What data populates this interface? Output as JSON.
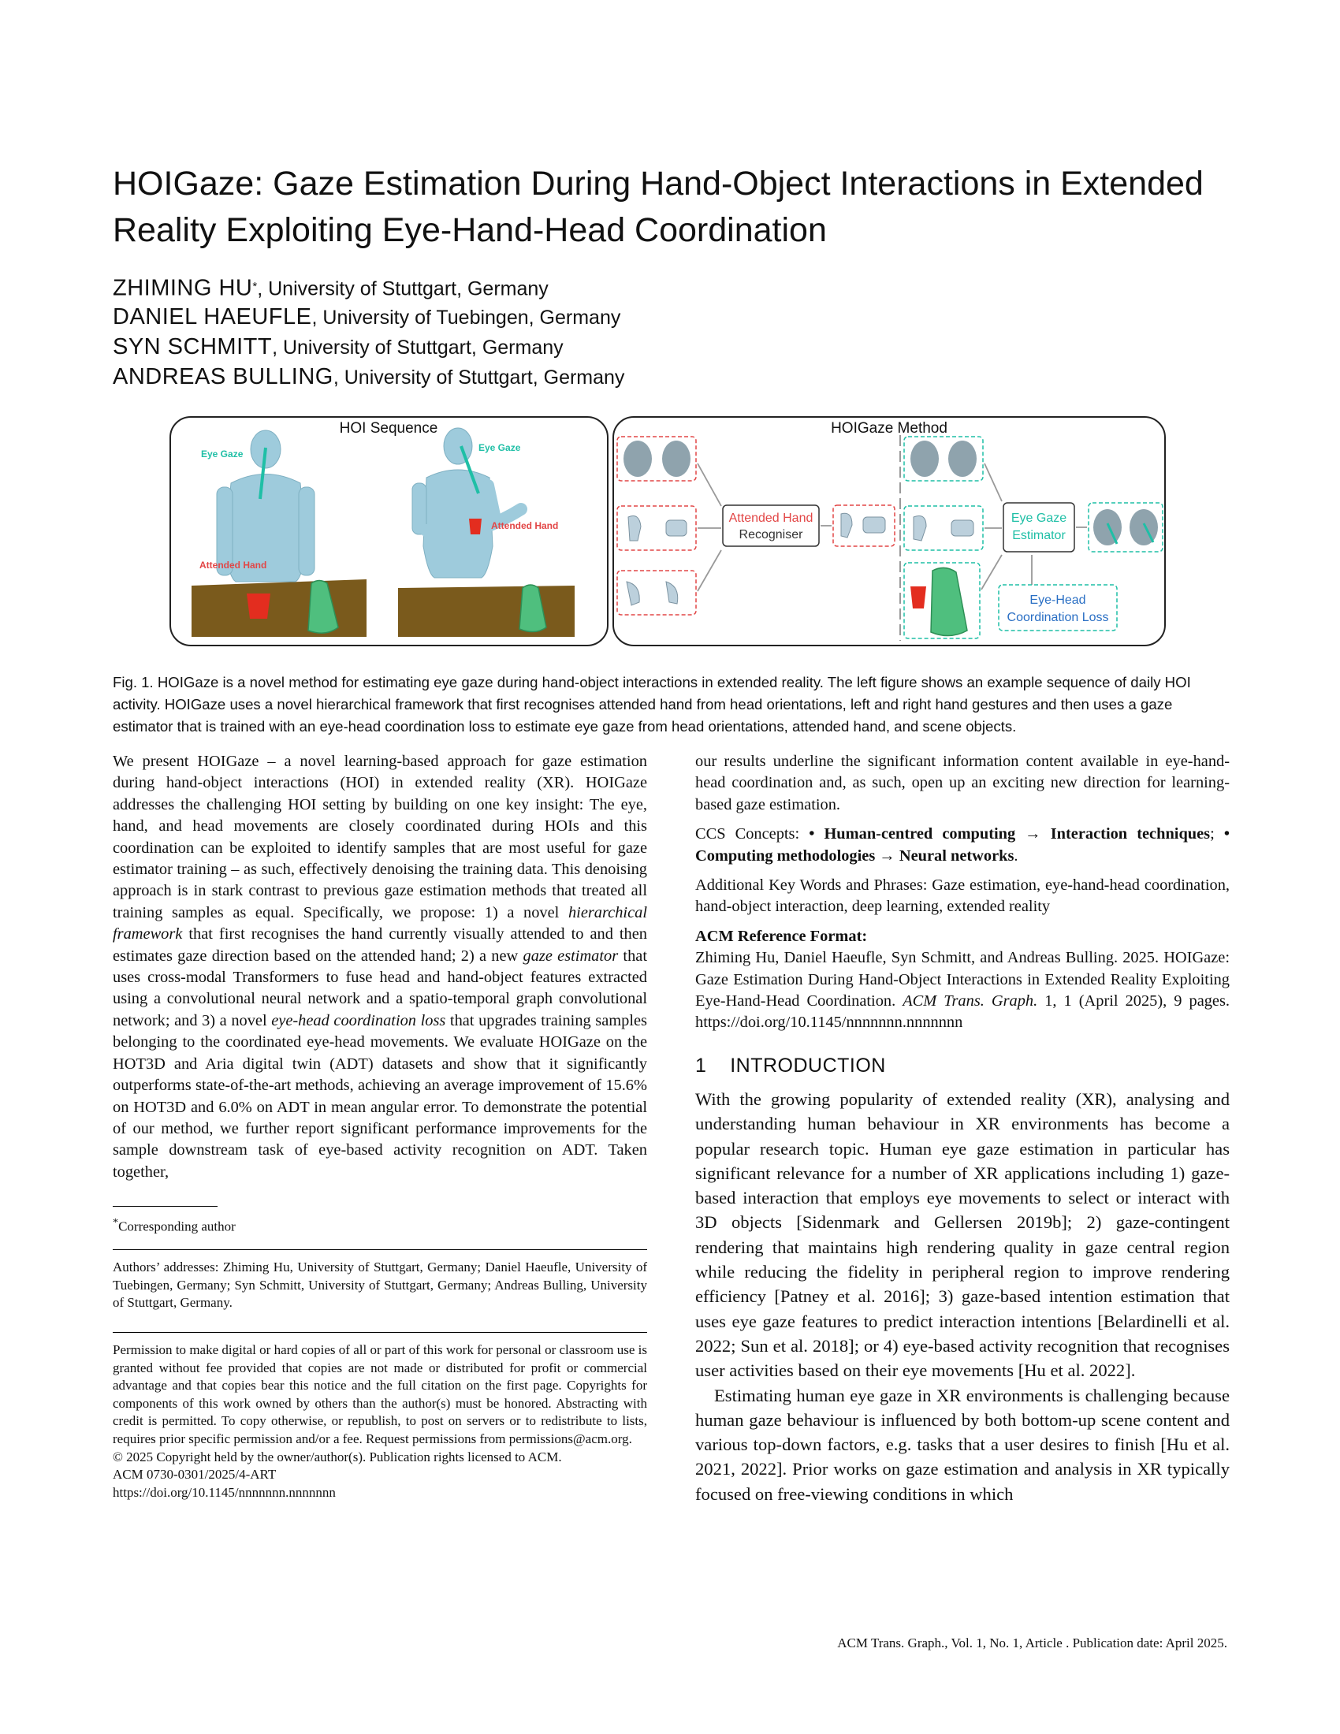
{
  "title": "HOIGaze: Gaze Estimation During Hand-Object Interactions in Extended Reality Exploiting Eye-Hand-Head Coordination",
  "authors": [
    {
      "name": "ZHIMING HU",
      "mark": "*",
      "affiliation": ", University of Stuttgart, Germany"
    },
    {
      "name": "DANIEL HAEUFLE",
      "mark": "",
      "affiliation": ", University of Tuebingen, Germany"
    },
    {
      "name": "SYN SCHMITT",
      "mark": "",
      "affiliation": ", University of Stuttgart, Germany"
    },
    {
      "name": "ANDREAS BULLING",
      "mark": "",
      "affiliation": ", University of Stuttgart, Germany"
    }
  ],
  "figure": {
    "left_title": "HOI Sequence",
    "right_title": "HOIGaze Method",
    "eye_gaze": "Eye Gaze",
    "attended_hand": "Attended Hand",
    "recogniser_line1": "Attended Hand",
    "recogniser_line2": "Recogniser",
    "estimator_line1": "Eye Gaze",
    "estimator_line2": "Estimator",
    "loss_line1": "Eye-Head",
    "loss_line2": "Coordination Loss",
    "colors": {
      "gaze": "#1fbfa6",
      "hand": "#e24646",
      "loss": "#2a6fc4",
      "body": "#9ecbdc",
      "table": "#7a5a1c"
    }
  },
  "caption": "Fig. 1.  HOIGaze is a novel method for estimating eye gaze during hand-object interactions in extended reality. The left figure shows an example sequence of daily HOI activity. HOIGaze uses a novel hierarchical framework that first recognises attended hand from head orientations, left and right hand gestures and then uses a gaze estimator that is trained with an eye-head coordination loss to estimate eye gaze from head orientations, attended hand, and scene objects.",
  "abstract": {
    "p1": "We present HOIGaze – a novel learning-based approach for gaze estimation during hand-object interactions (HOI) in extended reality (XR). HOIGaze addresses the challenging HOI setting by building on one key insight: The eye, hand, and head movements are closely coordinated during HOIs and this coordination can be exploited to identify samples that are most useful for gaze estimator training – as such, effectively denoising the training data. This denoising approach is in stark contrast to previous gaze estimation methods that treated all training samples as equal. Specifically, we propose: 1) a novel ",
    "em1": "hierarchical framework",
    "p2": " that first recognises the hand currently visually attended to and then estimates gaze direction based on the attended hand; 2) a new ",
    "em2": "gaze estimator",
    "p3": " that uses cross-modal Transformers to fuse head and hand-object features extracted using a convolutional neural network and a spatio-temporal graph convolutional network; and 3) a novel ",
    "em3": "eye-head coordination loss",
    "p4": " that upgrades training samples belonging to the coordinated eye-head movements. We evaluate HOIGaze on the HOT3D and Aria digital twin (ADT) datasets and show that it significantly outperforms state-of-the-art methods, achieving an average improvement of 15.6% on HOT3D and 6.0% on ADT in mean angular error. To demonstrate the potential of our method, we further report significant performance improvements for the sample downstream task of eye-based activity recognition on ADT. Taken together,",
    "cont": "our results underline the significant information content available in eye-hand-head coordination and, as such, open up an exciting new direction for learning-based gaze estimation."
  },
  "ccs": {
    "label": "CCS Concepts: ",
    "item1": "• Human-centred computing → Interaction techniques",
    "sep": ";",
    "item2": "• Computing methodologies → Neural networks",
    "end": "."
  },
  "keywords": "Additional Key Words and Phrases: Gaze estimation, eye-hand-head coordination, hand-object interaction, deep learning, extended reality",
  "reference": {
    "heading": "ACM Reference Format:",
    "before": "Zhiming Hu, Daniel Haeufle, Syn Schmitt, and Andreas Bulling. 2025. HOIGaze: Gaze Estimation During Hand-Object Interactions in Extended Reality Exploiting Eye-Hand-Head Coordination. ",
    "journal": "ACM Trans. Graph.",
    "after": " 1, 1 (April 2025), 9 pages. https://doi.org/10.1145/nnnnnnn.nnnnnnn"
  },
  "footnote": {
    "mark": "*",
    "text": "Corresponding author"
  },
  "addresses": "Authors’ addresses: Zhiming Hu, University of Stuttgart, Germany; Daniel Haeufle, University of Tuebingen, Germany; Syn Schmitt, University of Stuttgart, Germany; Andreas Bulling, University of Stuttgart, Germany.",
  "permission": "Permission to make digital or hard copies of all or part of this work for personal or classroom use is granted without fee provided that copies are not made or distributed for profit or commercial advantage and that copies bear this notice and the full citation on the first page. Copyrights for components of this work owned by others than the author(s) must be honored. Abstracting with credit is permitted. To copy otherwise, or republish, to post on servers or to redistribute to lists, requires prior specific permission and/or a fee. Request permissions from permissions@acm.org.",
  "copyright": "© 2025 Copyright held by the owner/author(s). Publication rights licensed to ACM.",
  "issn": "ACM 0730-0301/2025/4-ART",
  "doi": "https://doi.org/10.1145/nnnnnnn.nnnnnnn",
  "section": {
    "number": "1",
    "title": "INTRODUCTION"
  },
  "intro": {
    "p1": "With the growing popularity of extended reality (XR), analysing and understanding human behaviour in XR environments has become a popular research topic. Human eye gaze estimation in particular has significant relevance for a number of XR applications including 1) gaze-based interaction that employs eye movements to select or interact with 3D objects [Sidenmark and Gellersen 2019b]; 2) gaze-contingent rendering that maintains high rendering quality in gaze central region while reducing the fidelity in peripheral region to improve rendering efficiency [Patney et al. 2016]; 3) gaze-based intention estimation that uses eye gaze features to predict interaction intentions [Belardinelli et al. 2022; Sun et al. 2018]; or 4) eye-based activity recognition that recognises user activities based on their eye movements [Hu et al. 2022].",
    "p2": "Estimating human eye gaze in XR environments is challenging because human gaze behaviour is influenced by both bottom-up scene content and various top-down factors, e.g. tasks that a user desires to finish [Hu et al. 2021, 2022]. Prior works on gaze estimation and analysis in XR typically focused on free-viewing conditions in which"
  },
  "footer": "ACM Trans. Graph., Vol. 1, No. 1, Article . Publication date: April 2025."
}
